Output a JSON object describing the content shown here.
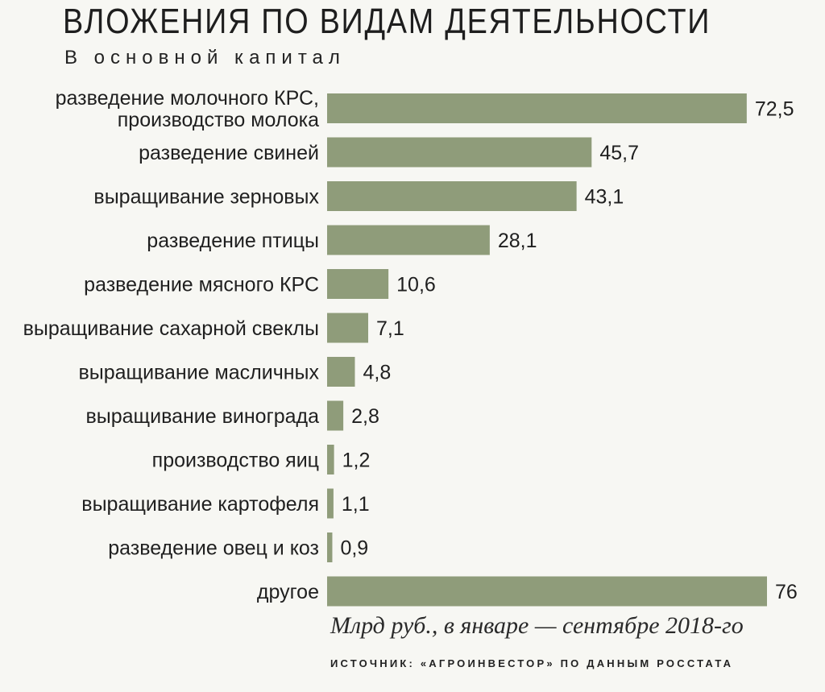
{
  "header": {
    "title": "ВЛОЖЕНИЯ ПО ВИДАМ ДЕЯТЕЛЬНОСТИ",
    "subtitle": "В основной капитал"
  },
  "chart_data": {
    "type": "bar",
    "orientation": "horizontal",
    "title": "ВЛОЖЕНИЯ ПО ВИДАМ ДЕЯТЕЛЬНОСТИ",
    "subtitle": "В основной капитал",
    "categories": [
      [
        "разведение молочного КРС,",
        "производство молока"
      ],
      [
        "разведение свиней"
      ],
      [
        "выращивание зерновых"
      ],
      [
        "разведение птицы"
      ],
      [
        "разведение мясного КРС"
      ],
      [
        "выращивание сахарной свеклы"
      ],
      [
        "выращивание масличных"
      ],
      [
        "выращивание винограда"
      ],
      [
        "производство яиц"
      ],
      [
        "выращивание картофеля"
      ],
      [
        "разведение овец и коз"
      ],
      [
        "другое"
      ]
    ],
    "values": [
      72.5,
      45.7,
      43.1,
      28.1,
      10.6,
      7.1,
      4.8,
      2.8,
      1.2,
      1.1,
      0.9,
      76
    ],
    "value_labels": [
      "72,5",
      "45,7",
      "43,1",
      "28,1",
      "10,6",
      "7,1",
      "4,8",
      "2,8",
      "1,2",
      "1,1",
      "0,9",
      "76"
    ],
    "xlim": [
      0,
      76
    ],
    "grid": false,
    "bar_color": "#8f9c7a",
    "unit_note": "Млрд руб., в январе — сентябре 2018-го",
    "source": "ИСТОЧНИК: «АГРОИНВЕСТОР» ПО ДАННЫМ РОССТАТА"
  }
}
